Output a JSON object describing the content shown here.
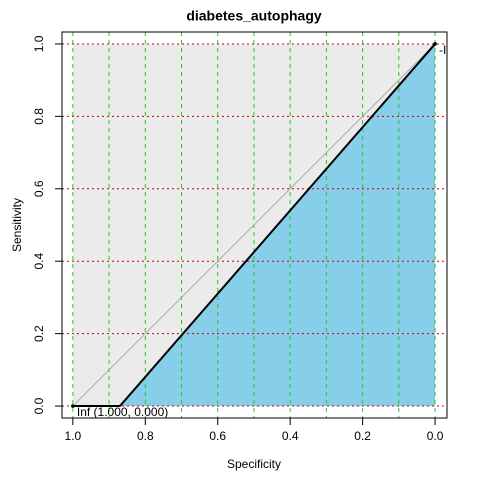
{
  "chart_data": {
    "type": "roc",
    "title": "diabetes_autophagy",
    "xlabel": "Specificity",
    "ylabel": "Sensitivity",
    "xlim": [
      1.03,
      -0.033
    ],
    "ylim": [
      -0.033,
      1.033
    ],
    "xticks": [
      {
        "value": 1,
        "label": "1.0"
      },
      0.8,
      0.6,
      0.4,
      0.2,
      {
        "value": 0,
        "label": "0.0"
      }
    ],
    "yticks": [
      {
        "value": 0,
        "label": "0.0"
      },
      0.2,
      0.4,
      0.6,
      0.8,
      {
        "value": 1,
        "label": "1.0"
      }
    ],
    "xgrid": [
      0,
      0.1,
      0.2,
      0.3,
      0.4,
      0.5,
      0.6,
      0.7,
      0.8,
      0.9,
      1
    ],
    "xgrid_color": "#22cc22",
    "ygrid": [
      0,
      0.2,
      0.4,
      0.6,
      0.8,
      1
    ],
    "ygrid_color": "#cc0000",
    "max_auc_color": "#ebebeb",
    "auc_color": "#87ceeb",
    "identity_color": "#aaaaaa",
    "series": [
      {
        "color": "#000000",
        "x": [
          1,
          0.87,
          0
        ],
        "values": [
          0,
          0,
          1
        ]
      }
    ],
    "annotations": [
      {
        "text": "Inf (1.000, 0.000)",
        "x": 1,
        "y": 0
      },
      {
        "text": "-Inf",
        "x": 0,
        "y": 1
      }
    ]
  }
}
